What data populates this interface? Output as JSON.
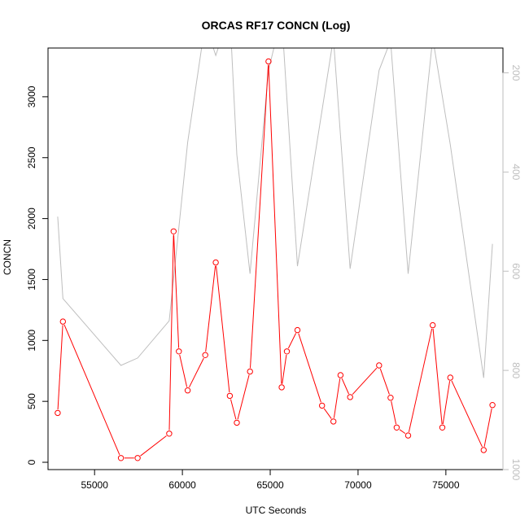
{
  "chart_data": {
    "type": "line",
    "title": "ORCAS RF17 CONCN (Log)",
    "xlabel": "UTC Seconds",
    "ylabel": "CONCN",
    "xlim": [
      52350,
      78250
    ],
    "ylim": [
      -60,
      3400
    ],
    "x_ticks": [
      55000,
      60000,
      65000,
      70000,
      75000
    ],
    "y_ticks": [
      0,
      500,
      1000,
      1500,
      2000,
      2500,
      3000
    ],
    "grid": false,
    "legend": "none",
    "series": [
      {
        "axis": "left",
        "color": "#ff0000",
        "markers": "open-circle",
        "points": [
          [
            52900,
            405
          ],
          [
            53200,
            1155
          ],
          [
            56500,
            35
          ],
          [
            57450,
            35
          ],
          [
            59250,
            235
          ],
          [
            59500,
            1895
          ],
          [
            59800,
            910
          ],
          [
            60300,
            590
          ],
          [
            61300,
            880
          ],
          [
            61900,
            1640
          ],
          [
            62700,
            545
          ],
          [
            63100,
            325
          ],
          [
            63850,
            745
          ],
          [
            64900,
            3290
          ],
          [
            65650,
            615
          ],
          [
            65950,
            910
          ],
          [
            66550,
            1085
          ],
          [
            67950,
            465
          ],
          [
            68600,
            335
          ],
          [
            69000,
            715
          ],
          [
            69550,
            535
          ],
          [
            71200,
            795
          ],
          [
            71850,
            530
          ],
          [
            72200,
            285
          ],
          [
            72850,
            220
          ],
          [
            74250,
            1125
          ],
          [
            74800,
            285
          ],
          [
            75250,
            695
          ],
          [
            77150,
            100
          ],
          [
            77650,
            470
          ]
        ]
      },
      {
        "axis": "right",
        "color": "#bebebe",
        "markers": "none",
        "points": [
          [
            52900,
            490
          ],
          [
            53200,
            655
          ],
          [
            56500,
            790
          ],
          [
            57450,
            775
          ],
          [
            59250,
            700
          ],
          [
            60300,
            340
          ],
          [
            61300,
            100
          ],
          [
            61900,
            165
          ],
          [
            62700,
            80
          ],
          [
            63100,
            365
          ],
          [
            63850,
            605
          ],
          [
            64900,
            195
          ],
          [
            65650,
            85
          ],
          [
            66550,
            590
          ],
          [
            68600,
            130
          ],
          [
            69550,
            595
          ],
          [
            71200,
            195
          ],
          [
            71850,
            135
          ],
          [
            72850,
            605
          ],
          [
            74250,
            130
          ],
          [
            75250,
            345
          ],
          [
            77150,
            815
          ],
          [
            77650,
            545
          ]
        ]
      }
    ],
    "right_axis": {
      "ylim": [
        1000,
        150
      ],
      "ticks": [
        200,
        400,
        600,
        800,
        1000
      ],
      "color": "#bebebe"
    }
  }
}
